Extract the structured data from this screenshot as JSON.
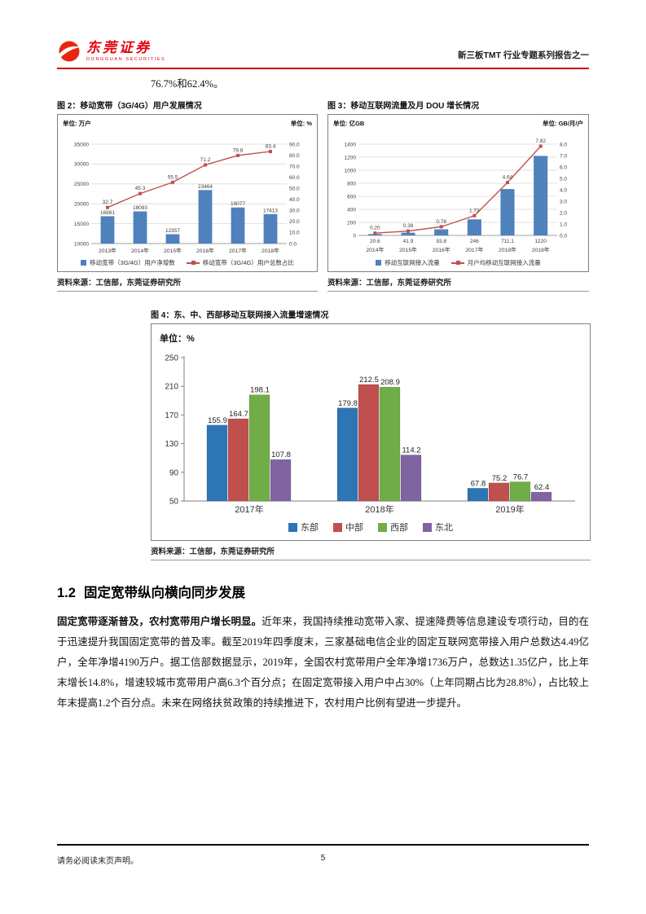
{
  "header": {
    "brand_cn": "东莞证券",
    "brand_en": "DONGGUAN SECURITIES",
    "report_title": "新三板TMT 行业专题系列报告之一",
    "accent_color": "#E60012"
  },
  "intro_text": "76.7%和62.4%。",
  "chart_data": [
    {
      "id": "figure2",
      "type": "bar",
      "subtype": "bar-line-combo",
      "title": "图 2：移动宽带（3G/4G）用户发展情况",
      "unit_left": "单位: 万户",
      "unit_right": "单位: %",
      "source": "资料来源：工信部，东莞证券研究所",
      "categories": [
        "2013年",
        "2014年",
        "2015年",
        "2016年",
        "2017年",
        "2018年"
      ],
      "bar": {
        "name": "移动宽带（3G/4G）用户净增数",
        "color": "#4F81BD",
        "values": [
          16881,
          18093,
          12357,
          23464,
          19077,
          17413
        ],
        "labels": [
          "16881",
          "18093",
          "12357",
          "23464",
          "19077",
          "17413"
        ],
        "label_pos": "above"
      },
      "line": {
        "name": "移动宽带（3G/4G）用户总数占比",
        "color": "#C0504D",
        "values": [
          32.7,
          45.3,
          55.5,
          71.2,
          79.8,
          83.4
        ],
        "labels": [
          "32.7",
          "45.3",
          "55.5",
          "71.2",
          "79.8",
          "83.4"
        ]
      },
      "left_axis": {
        "min": 10000,
        "max": 35000,
        "step": 5000,
        "decimals": 0
      },
      "right_axis": {
        "min": 0,
        "max": 90,
        "step": 10,
        "decimals": 1
      },
      "grid": true,
      "legend_position": "bottom"
    },
    {
      "id": "figure3",
      "type": "bar",
      "subtype": "bar-line-combo",
      "title": "图 3：移动互联网流量及月 DOU 增长情况",
      "unit_left": "单位: 亿GB",
      "unit_right": "单位: GB/月/户",
      "source": "资料来源：工信部，东莞证券研究所",
      "categories": [
        "2014年",
        "2015年",
        "2016年",
        "2017年",
        "2018年",
        "2019年"
      ],
      "bar": {
        "name": "移动互联网接入流量",
        "color": "#4F81BD",
        "values": [
          20.6,
          41.9,
          93.8,
          246,
          711.1,
          1220
        ],
        "labels": [
          "20.6",
          "41.9",
          "93.8",
          "246",
          "711.1",
          "1220"
        ],
        "label_pos": "below"
      },
      "line": {
        "name": "月户均移动互联网接入流量",
        "color": "#C0504D",
        "values": [
          0.2,
          0.38,
          0.76,
          1.73,
          4.64,
          7.82
        ],
        "labels": [
          "0.20",
          "0.38",
          "0.76",
          "1.73",
          "4.64",
          "7.82"
        ]
      },
      "left_axis": {
        "min": 0,
        "max": 1400,
        "step": 200,
        "decimals": 0
      },
      "right_axis": {
        "min": 0,
        "max": 8,
        "step": 1,
        "decimals": 1
      },
      "grid": true,
      "legend_position": "bottom"
    },
    {
      "id": "figure4",
      "type": "bar",
      "subtype": "grouped-bar",
      "title": "图 4：东、中、西部移动互联网接入流量增速情况",
      "unit": "单位：%",
      "source": "资料来源：工信部，东莞证券研究所",
      "categories": [
        "2017年",
        "2018年",
        "2019年"
      ],
      "series": [
        {
          "name": "东部",
          "color": "#2E75B6",
          "values": [
            155.9,
            179.8,
            67.8
          ]
        },
        {
          "name": "中部",
          "color": "#C0504D",
          "values": [
            164.7,
            212.5,
            75.2
          ]
        },
        {
          "name": "西部",
          "color": "#70AD47",
          "values": [
            198.1,
            208.9,
            76.7
          ]
        },
        {
          "name": "东北",
          "color": "#8064A2",
          "values": [
            107.8,
            114.2,
            62.4
          ]
        }
      ],
      "y_axis": {
        "min": 50,
        "max": 250,
        "step": 40
      },
      "grid": false,
      "legend_position": "bottom"
    }
  ],
  "section": {
    "number": "1.2",
    "title": "固定宽带纵向横向同步发展"
  },
  "paragraph": {
    "lead": "固定宽带逐渐普及，农村宽带用户增长明显。",
    "body": "近年来，我国持续推动宽带入家、提速降费等信息建设专项行动，目的在于迅速提升我国固定宽带的普及率。截至2019年四季度末，三家基础电信企业的固定互联网宽带接入用户总数达4.49亿户，全年净增4190万户。据工信部数据显示，2019年，全国农村宽带用户全年净增1736万户，总数达1.35亿户，比上年末增长14.8%，增速较城市宽带用户高6.3个百分点；在固定宽带接入用户中占30%（上年同期占比为28.8%），占比较上年末提高1.2个百分点。未来在网络扶贫政策的持续推进下，农村用户比例有望进一步提升。"
  },
  "footer": {
    "disclaimer": "请务必阅读末页声明。",
    "page_number": "5"
  }
}
